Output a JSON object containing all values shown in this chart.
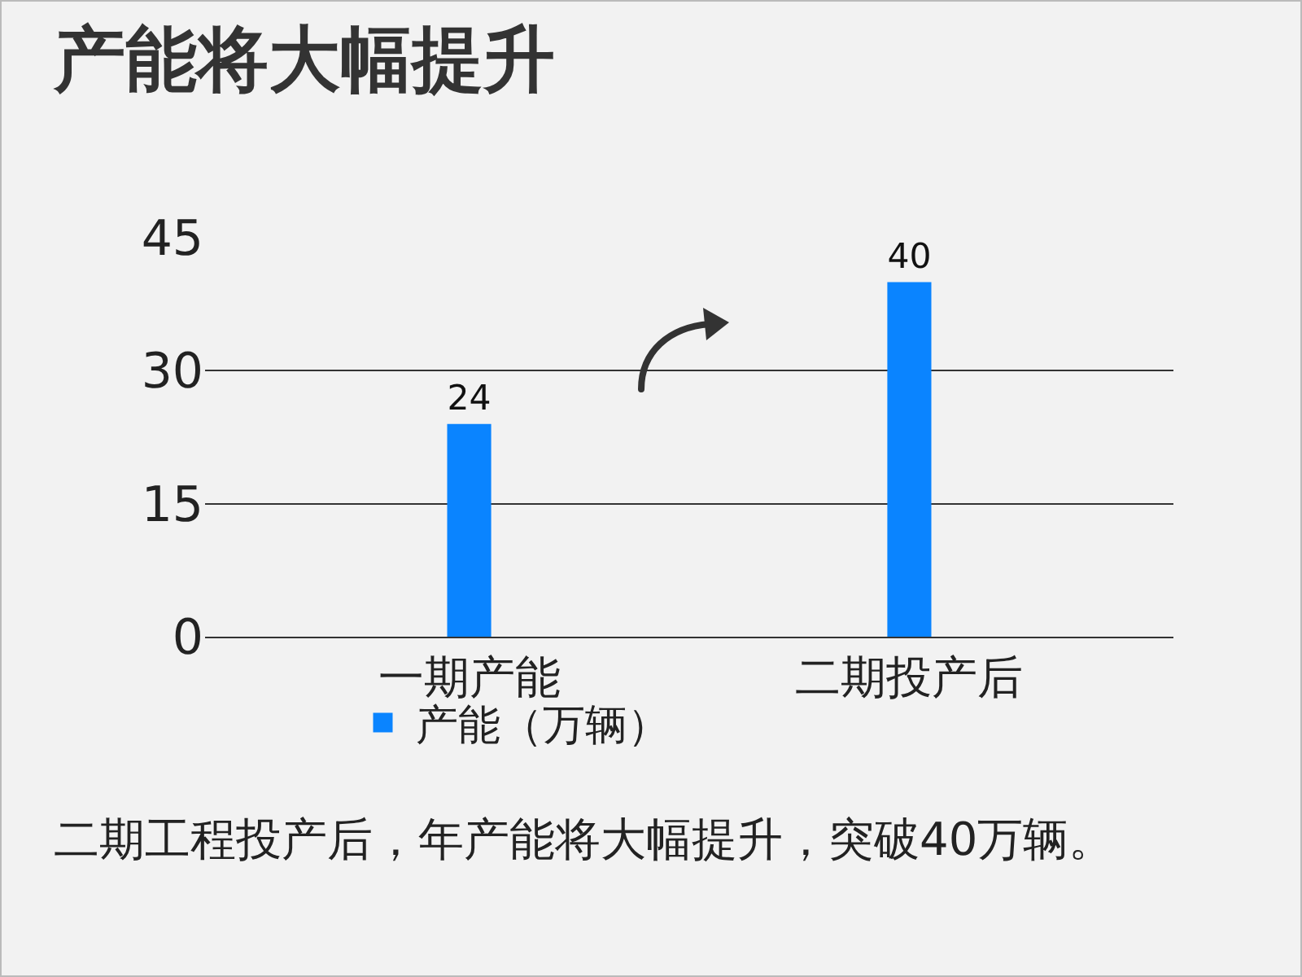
{
  "chart_data": {
    "type": "bar",
    "title": "产能将大幅提升",
    "categories": [
      "一期产能",
      "二期投产后"
    ],
    "series": [
      {
        "name": "产能（万辆）",
        "color": "#0a84ff",
        "values": [
          24,
          40
        ]
      }
    ],
    "ylim": [
      0,
      45
    ],
    "yticks": [
      0,
      15,
      30,
      45
    ],
    "grid": "y",
    "legend": "bottom",
    "data_labels": true,
    "annotations": [
      "二期工程投产后，年产能将大幅提升，突破40万辆。"
    ]
  }
}
